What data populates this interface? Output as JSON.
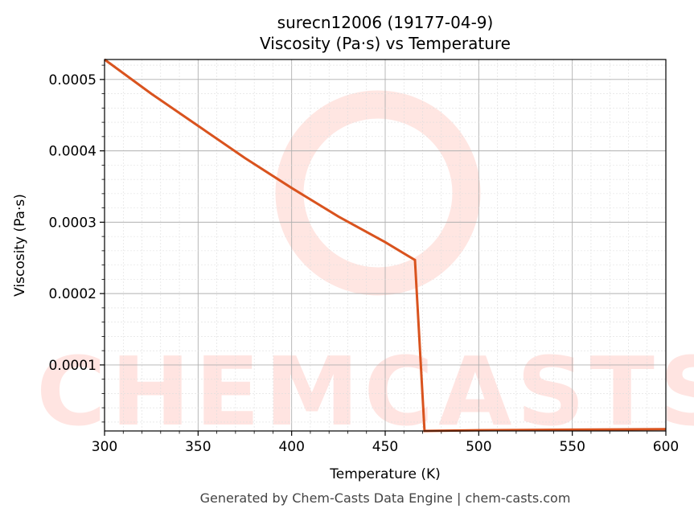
{
  "chart_data": {
    "type": "line",
    "title": "surecn12006 (19177-04-9)",
    "subtitle": "Viscosity (Pa·s) vs Temperature",
    "xlabel": "Temperature (K)",
    "ylabel": "Viscosity (Pa·s)",
    "xlim": [
      300,
      600
    ],
    "ylim": [
      7.5e-06,
      0.000528
    ],
    "xticks": [
      300,
      350,
      400,
      450,
      500,
      550,
      600
    ],
    "yticks": [
      "0.0001",
      "0.0002",
      "0.0003",
      "0.0004",
      "0.0005"
    ],
    "grid": true,
    "line_color": "#d9531e",
    "series": [
      {
        "x": [
          300,
          325,
          350,
          375,
          400,
          425,
          450,
          465.9,
          471,
          500,
          550,
          600
        ],
        "y": [
          0.000528,
          0.00048,
          0.000435,
          0.00039,
          0.000348,
          0.000308,
          0.000272,
          0.000247,
          7.5e-06,
          8.5e-06,
          9.3e-06,
          1e-05
        ]
      }
    ]
  },
  "watermark": "CHEMCASTS",
  "footer": "Generated by Chem-Casts Data Engine | chem-casts.com"
}
